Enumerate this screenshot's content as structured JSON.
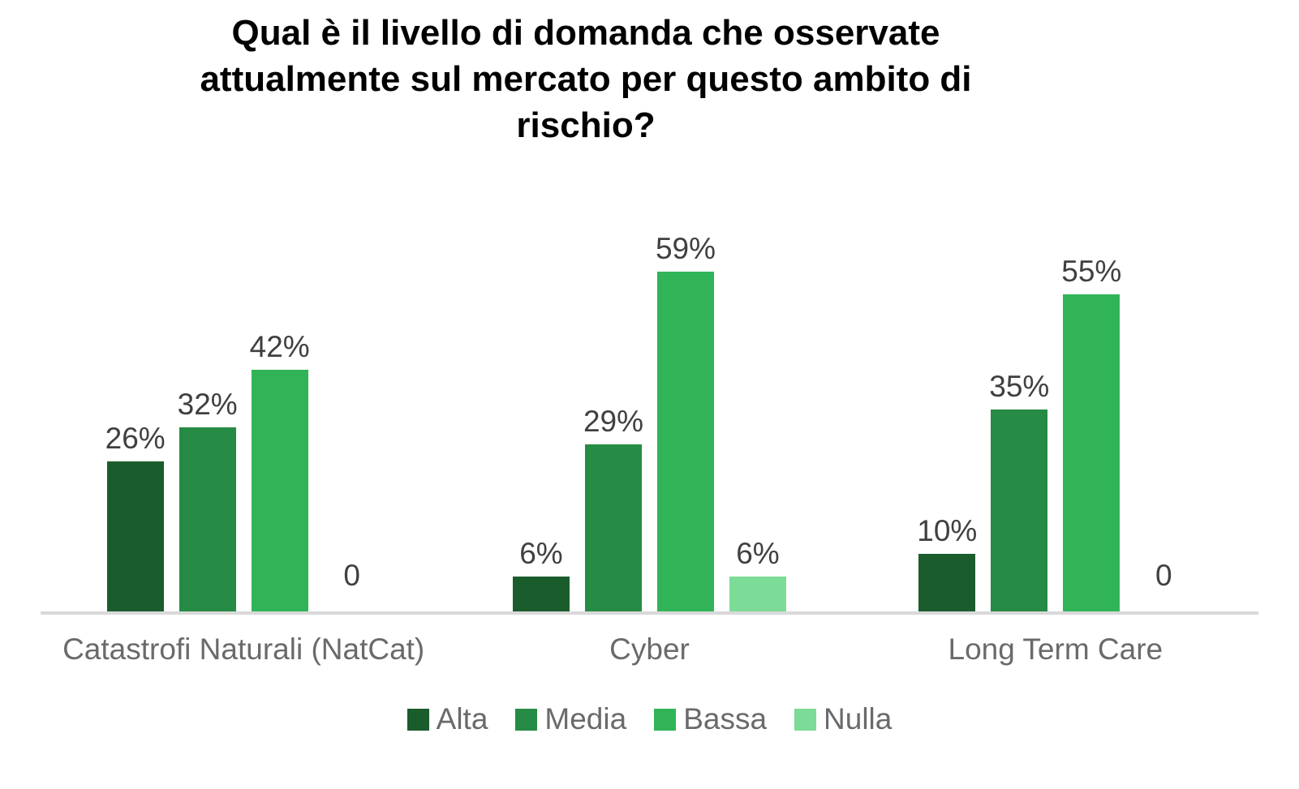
{
  "chart_data": {
    "type": "bar",
    "title": "Qual è il livello di domanda che osservate attualmente sul mercato per questo ambito di rischio?",
    "categories": [
      "Catastrofi Naturali (NatCat)",
      "Cyber",
      "Long Term Care"
    ],
    "series": [
      {
        "name": "Alta",
        "color": "#1b5c2d",
        "values": [
          26,
          6,
          10
        ],
        "labels": [
          "26%",
          "6%",
          "10%"
        ]
      },
      {
        "name": "Media",
        "color": "#268b44",
        "values": [
          32,
          29,
          35
        ],
        "labels": [
          "32%",
          "29%",
          "35%"
        ]
      },
      {
        "name": "Bassa",
        "color": "#30b457",
        "values": [
          42,
          59,
          55
        ],
        "labels": [
          "42%",
          "59%",
          "55%"
        ]
      },
      {
        "name": "Nulla",
        "color": "#7cdb96",
        "values": [
          0,
          6,
          0
        ],
        "labels": [
          "0",
          "6%",
          "0"
        ]
      }
    ],
    "value_unit": "%",
    "ylim": [
      0,
      70
    ],
    "grid": false,
    "legend_position": "bottom",
    "data_labels": "outside-end",
    "axis_line_color": "#d9d9d9"
  }
}
